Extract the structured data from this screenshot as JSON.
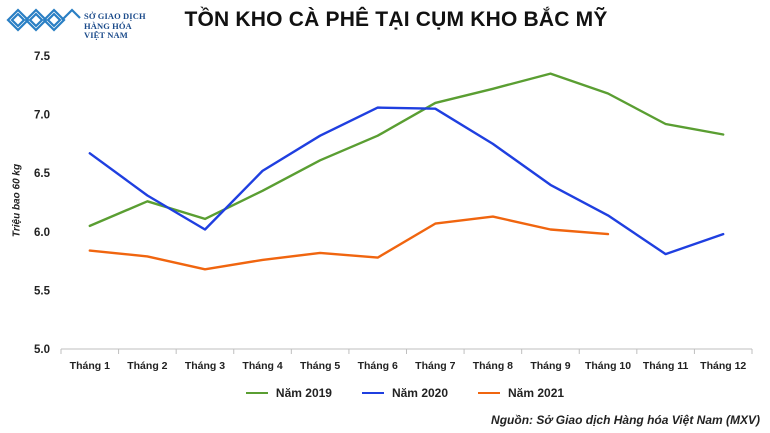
{
  "header": {
    "logo_lines": [
      "SỞ GIAO DỊCH",
      "HÀNG HÓA",
      "VIỆT NAM"
    ],
    "title": "TỒN KHO CÀ PHÊ TẠI CỤM KHO BẮC MỸ"
  },
  "source": "Nguồn: Sở Giao dịch Hàng hóa Việt Nam (MXV)",
  "colors": {
    "series_2019": "#5a9e32",
    "series_2020": "#1f3fe0",
    "series_2021": "#f0650f",
    "brand": "#1a4a8a"
  },
  "chart_data": {
    "type": "line",
    "title": "TỒN KHO CÀ PHÊ TẠI CỤM KHO BẮC MỸ",
    "xlabel": "",
    "ylabel": "Triệu bao 60 kg",
    "ylim": [
      5.0,
      7.5
    ],
    "yticks": [
      "5.0",
      "5.5",
      "6.0",
      "6.5",
      "7.0",
      "7.5"
    ],
    "grid": false,
    "legend_position": "bottom",
    "categories": [
      "Tháng 1",
      "Tháng 2",
      "Tháng 3",
      "Tháng 4",
      "Tháng 5",
      "Tháng 6",
      "Tháng 7",
      "Tháng 8",
      "Tháng 9",
      "Tháng 10",
      "Tháng 11",
      "Tháng 12"
    ],
    "series": [
      {
        "name": "Năm 2019",
        "color": "#5a9e32",
        "values": [
          6.05,
          6.26,
          6.11,
          6.35,
          6.61,
          6.82,
          7.1,
          7.22,
          7.35,
          7.18,
          6.92,
          6.83
        ]
      },
      {
        "name": "Năm 2020",
        "color": "#1f3fe0",
        "values": [
          6.67,
          6.31,
          6.02,
          6.52,
          6.82,
          7.06,
          7.05,
          6.75,
          6.4,
          6.14,
          5.81,
          5.98
        ]
      },
      {
        "name": "Năm 2021",
        "color": "#f0650f",
        "values": [
          5.84,
          5.79,
          5.68,
          5.76,
          5.82,
          5.78,
          6.07,
          6.13,
          6.02,
          5.98
        ]
      }
    ],
    "annotations": [
      "Nguồn: Sở Giao dịch Hàng hóa Việt Nam (MXV)"
    ]
  }
}
